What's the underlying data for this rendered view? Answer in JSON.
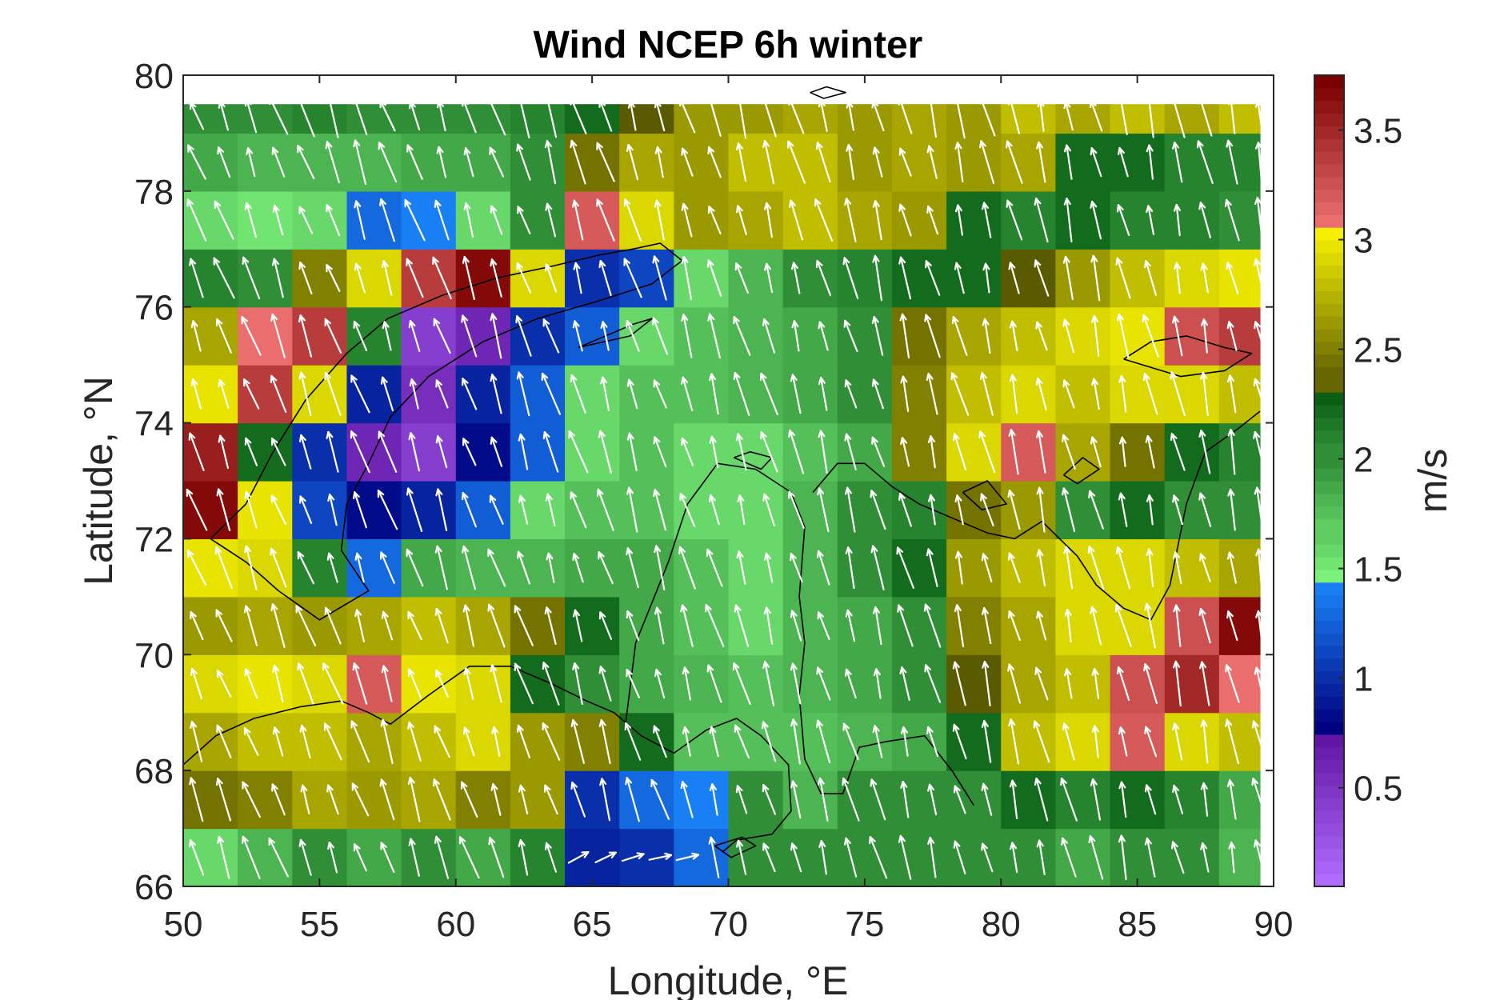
{
  "chart_data": {
    "type": "heatmap",
    "title": "Wind NCEP 6h winter",
    "xlabel": "Longitude, °E",
    "ylabel": "Latitude, °N",
    "xlim": [
      50,
      90
    ],
    "ylim": [
      66,
      80
    ],
    "xticks": [
      50,
      55,
      60,
      65,
      70,
      75,
      80,
      85,
      90
    ],
    "yticks": [
      66,
      68,
      70,
      72,
      74,
      76,
      78,
      80
    ],
    "colorbar": {
      "label": "m/s",
      "range": [
        0.05,
        3.75
      ],
      "ticks": [
        0.5,
        1,
        1.5,
        2,
        2.5,
        3,
        3.5
      ],
      "segments": [
        {
          "from": 0.05,
          "to": 0.75,
          "start_color": "#b06cff",
          "end_color": "#5a0f9c"
        },
        {
          "from": 0.75,
          "to": 1.45,
          "start_color": "#000080",
          "end_color": "#1a8cff"
        },
        {
          "from": 1.45,
          "to": 2.3,
          "start_color": "#7bf07b",
          "end_color": "#0a5f14"
        },
        {
          "from": 2.3,
          "to": 3.05,
          "start_color": "#5a5a00",
          "end_color": "#f5f000"
        },
        {
          "from": 3.05,
          "to": 3.75,
          "start_color": "#f57878",
          "end_color": "#7a0000"
        }
      ]
    },
    "grid_lon": [
      50,
      52,
      54,
      56,
      58,
      60,
      62,
      64,
      66,
      68,
      70,
      72,
      74,
      76,
      78,
      80,
      82,
      84,
      86,
      88,
      90
    ],
    "grid_lat": [
      66,
      67,
      68,
      69,
      70,
      71,
      72,
      73,
      74,
      75,
      76,
      77,
      78,
      79,
      79.5
    ],
    "speed_rows": [
      [
        1.6,
        1.8,
        2.0,
        1.9,
        2.0,
        1.9,
        2.1,
        0.9,
        1.0,
        1.3,
        2.0,
        2.0,
        2.0,
        2.0,
        2.0,
        2.0,
        1.9,
        2.0,
        2.0,
        1.8
      ],
      [
        2.4,
        2.5,
        2.7,
        2.6,
        2.7,
        2.5,
        2.6,
        1.0,
        1.3,
        1.4,
        2.0,
        1.8,
        2.0,
        2.0,
        2.0,
        2.2,
        2.1,
        2.2,
        2.1,
        1.9
      ],
      [
        2.7,
        2.8,
        2.8,
        2.7,
        2.8,
        2.9,
        2.6,
        2.5,
        2.2,
        1.7,
        1.7,
        1.7,
        1.8,
        1.9,
        2.2,
        2.8,
        2.9,
        3.2,
        2.9,
        2.8
      ],
      [
        2.9,
        3.0,
        2.9,
        3.2,
        3.0,
        2.9,
        2.2,
        2.0,
        1.9,
        1.8,
        1.7,
        1.8,
        1.9,
        2.0,
        2.3,
        2.7,
        2.8,
        3.3,
        3.5,
        3.1
      ],
      [
        2.6,
        2.7,
        2.6,
        2.7,
        2.8,
        2.7,
        2.4,
        2.2,
        1.9,
        1.7,
        1.6,
        1.8,
        1.9,
        2.0,
        2.5,
        2.7,
        2.9,
        2.9,
        3.3,
        3.7
      ],
      [
        3.0,
        2.9,
        2.1,
        1.3,
        1.9,
        1.8,
        1.8,
        1.9,
        1.9,
        1.7,
        1.6,
        1.8,
        2.0,
        2.2,
        2.6,
        2.8,
        2.9,
        2.9,
        2.8,
        2.7
      ],
      [
        3.7,
        3.0,
        1.1,
        0.8,
        0.9,
        1.2,
        1.6,
        1.7,
        1.7,
        1.6,
        1.6,
        1.8,
        2.0,
        2.1,
        2.4,
        2.6,
        2.0,
        2.2,
        2.0,
        2.0
      ],
      [
        3.6,
        2.2,
        1.0,
        0.6,
        0.4,
        0.8,
        1.2,
        1.6,
        1.7,
        1.6,
        1.6,
        1.7,
        1.9,
        2.5,
        2.9,
        3.2,
        2.7,
        2.4,
        2.2,
        2.1
      ],
      [
        3.0,
        3.4,
        2.9,
        0.9,
        0.5,
        0.9,
        1.2,
        1.6,
        1.7,
        1.7,
        1.8,
        1.9,
        2.0,
        2.5,
        2.8,
        2.9,
        2.8,
        2.9,
        2.9,
        2.8
      ],
      [
        2.7,
        3.1,
        3.4,
        2.1,
        0.4,
        0.6,
        1.0,
        1.2,
        1.6,
        1.7,
        1.8,
        1.9,
        2.0,
        2.4,
        2.7,
        2.8,
        2.9,
        3.0,
        3.3,
        3.4
      ],
      [
        2.1,
        2.0,
        2.5,
        2.9,
        3.4,
        3.7,
        2.9,
        1.0,
        1.1,
        1.6,
        1.8,
        2.0,
        2.1,
        2.2,
        2.2,
        2.3,
        2.6,
        2.8,
        2.9,
        3.0
      ],
      [
        1.6,
        1.5,
        1.6,
        1.3,
        1.4,
        1.6,
        2.0,
        3.2,
        2.9,
        2.6,
        2.7,
        2.8,
        2.7,
        2.6,
        2.2,
        2.1,
        2.2,
        2.1,
        2.1,
        2.0
      ],
      [
        1.9,
        1.8,
        1.8,
        1.8,
        1.9,
        1.9,
        2.0,
        2.4,
        2.7,
        2.6,
        2.8,
        2.8,
        2.6,
        2.7,
        2.6,
        2.7,
        2.2,
        2.2,
        2.1,
        2.1
      ],
      [
        2.0,
        2.0,
        2.1,
        2.0,
        2.0,
        2.0,
        2.1,
        2.2,
        2.3,
        2.6,
        2.6,
        2.7,
        2.6,
        2.7,
        2.6,
        2.8,
        2.7,
        2.8,
        2.7,
        2.8
      ]
    ],
    "wind_vectors": {
      "lon": [
        50.5,
        51.5,
        52.5,
        53.5,
        54.5,
        55.5,
        56.5,
        57.5,
        58.5,
        59.5,
        60.5,
        61.5,
        62.5,
        63.5,
        64.5,
        65.5,
        66.5,
        67.5,
        68.5,
        69.5,
        70.5,
        71.5,
        72.5,
        73.5,
        74.5,
        75.5,
        76.5,
        77.5,
        78.5,
        79.5,
        80.5,
        81.5,
        82.5,
        83.5,
        84.5,
        85.5,
        86.5,
        87.5,
        88.5,
        89.5
      ],
      "lat": [
        66.5,
        67.5,
        68.5,
        69.5,
        70.5,
        71.5,
        72.5,
        73.5,
        74.5,
        75.5,
        76.5,
        77.5,
        78.5,
        79.3
      ],
      "color": "#ffffff",
      "prevailing_direction": "north-northwest",
      "calm_zone": {
        "lon": [
          64,
          69
        ],
        "lat": [
          66,
          67.5
        ],
        "direction": "east-northeast"
      }
    },
    "coastline_color": "#000000",
    "region_lon_max": 89.5,
    "region_lat_max": 79.5,
    "grid": false
  }
}
